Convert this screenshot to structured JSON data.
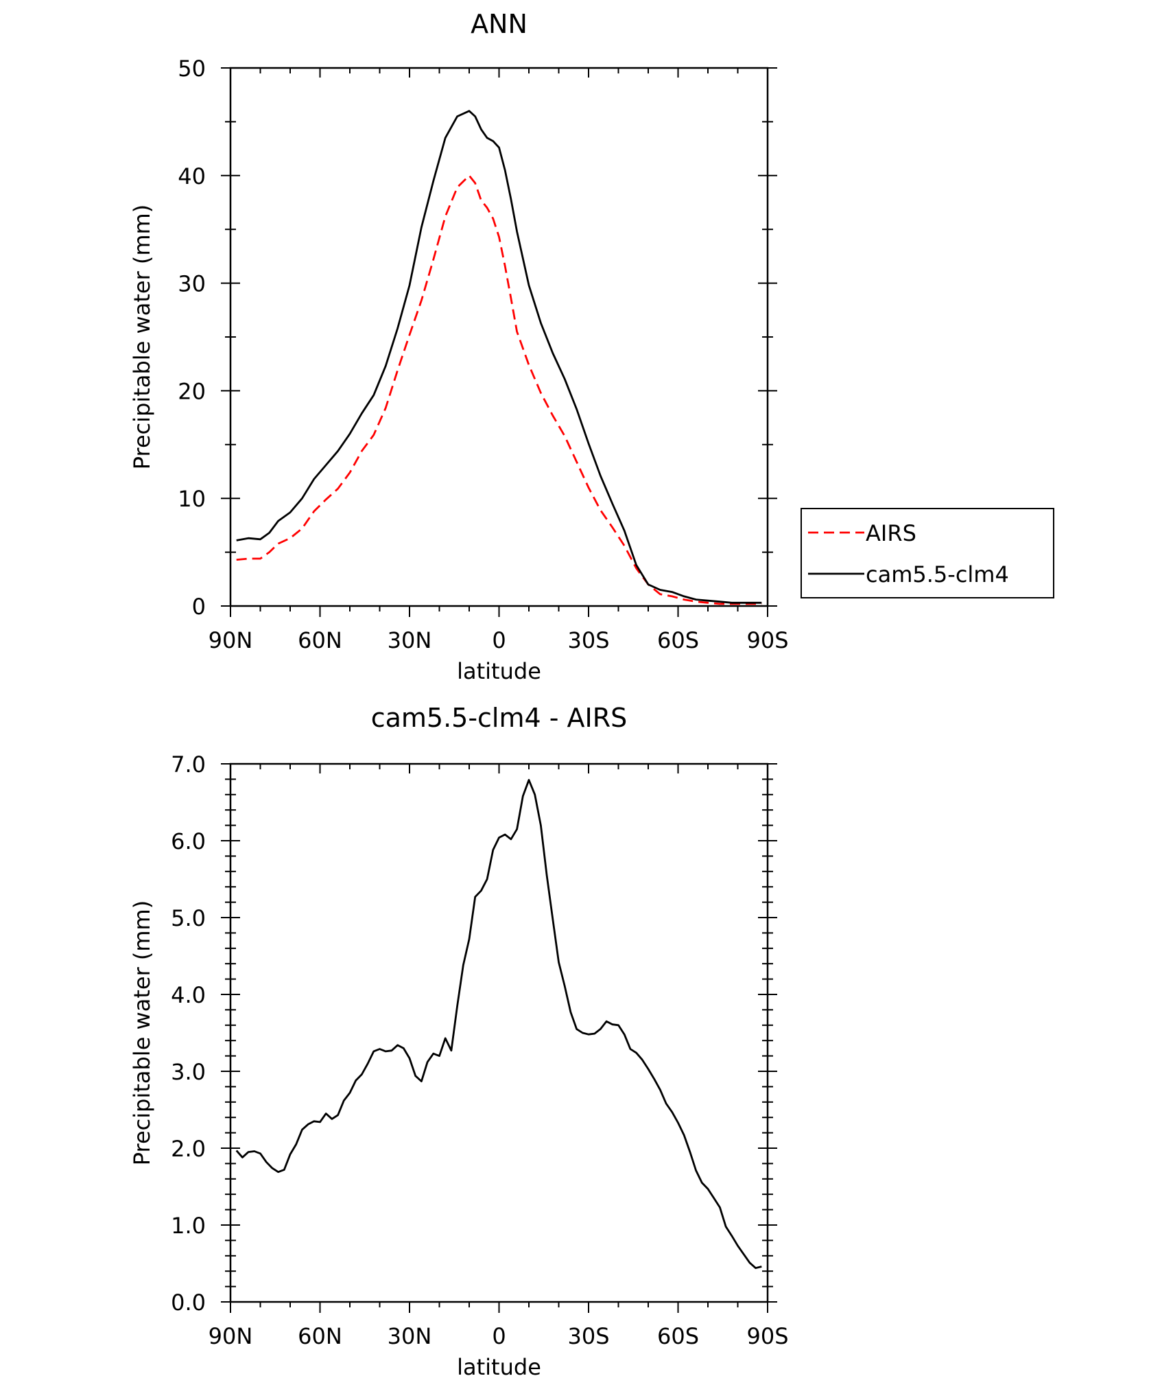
{
  "chart_data": [
    {
      "type": "line",
      "title": "ANN",
      "xlabel": "latitude",
      "ylabel": "Precipitable water (mm)",
      "xlim": [
        90,
        -90
      ],
      "ylim": [
        0,
        50
      ],
      "x_ticks": [
        90,
        60,
        30,
        0,
        -30,
        -60,
        -90
      ],
      "x_tick_labels": [
        "90N",
        "60N",
        "30N",
        "0",
        "30S",
        "60S",
        "90S"
      ],
      "y_ticks": [
        0,
        10,
        20,
        30,
        40,
        50
      ],
      "y_tick_labels": [
        "0",
        "10",
        "20",
        "30",
        "40",
        "50"
      ],
      "legend": "right",
      "series": [
        {
          "name": "AIRS",
          "color": "#ff0000",
          "dash": "dashed",
          "x": [
            88,
            84,
            80,
            77,
            74,
            70,
            66,
            62,
            58,
            54,
            50,
            46,
            42,
            38,
            34,
            30,
            26,
            22,
            18,
            14,
            10,
            8,
            6,
            4,
            2,
            0,
            -2,
            -4,
            -6,
            -10,
            -14,
            -18,
            -22,
            -26,
            -30,
            -34,
            -38,
            -42,
            -46,
            -50,
            -54,
            -58,
            -62,
            -66,
            -70,
            -74,
            -78,
            -82,
            -85,
            -88
          ],
          "y": [
            4.3,
            4.4,
            4.4,
            5.0,
            5.8,
            6.3,
            7.2,
            8.8,
            9.9,
            10.9,
            12.4,
            14.4,
            15.9,
            18.4,
            21.9,
            25.2,
            28.4,
            32.2,
            36.2,
            38.9,
            40.0,
            39.3,
            37.7,
            37.0,
            36.0,
            34.3,
            31.6,
            28.6,
            25.5,
            22.4,
            19.8,
            17.7,
            15.8,
            13.4,
            11.0,
            8.9,
            7.3,
            5.6,
            3.5,
            2.0,
            1.1,
            0.9,
            0.6,
            0.4,
            0.3,
            0.2,
            0.2,
            0.2,
            0.2,
            0.2
          ]
        },
        {
          "name": "cam5.5-clm4",
          "color": "#000000",
          "dash": "solid",
          "x": [
            88,
            84,
            80,
            77,
            74,
            70,
            66,
            62,
            58,
            54,
            50,
            46,
            42,
            38,
            34,
            30,
            26,
            22,
            18,
            14,
            10,
            8,
            6,
            4,
            2,
            0,
            -2,
            -4,
            -6,
            -10,
            -14,
            -18,
            -22,
            -26,
            -30,
            -34,
            -38,
            -42,
            -46,
            -50,
            -54,
            -58,
            -62,
            -66,
            -70,
            -74,
            -78,
            -82,
            -85,
            -88
          ],
          "y": [
            6.1,
            6.3,
            6.2,
            6.8,
            7.9,
            8.7,
            10.0,
            11.8,
            13.1,
            14.4,
            16.0,
            17.9,
            19.6,
            22.3,
            25.8,
            29.8,
            35.2,
            39.5,
            43.5,
            45.5,
            46.0,
            45.5,
            44.3,
            43.5,
            43.2,
            42.6,
            40.5,
            37.8,
            34.8,
            29.8,
            26.3,
            23.5,
            21.1,
            18.3,
            15.1,
            12.1,
            9.5,
            7.0,
            3.8,
            2.0,
            1.5,
            1.3,
            0.9,
            0.6,
            0.5,
            0.4,
            0.3,
            0.3,
            0.3,
            0.3
          ]
        }
      ]
    },
    {
      "type": "line",
      "title": "cam5.5-clm4 - AIRS",
      "xlabel": "latitude",
      "ylabel": "Precipitable water (mm)",
      "xlim": [
        90,
        -90
      ],
      "ylim": [
        0,
        7
      ],
      "x_ticks": [
        90,
        60,
        30,
        0,
        -30,
        -60,
        -90
      ],
      "x_tick_labels": [
        "90N",
        "60N",
        "30N",
        "0",
        "30S",
        "60S",
        "90S"
      ],
      "y_ticks": [
        0,
        1,
        2,
        3,
        4,
        5,
        6,
        7
      ],
      "y_tick_labels": [
        "0.0",
        "1.0",
        "2.0",
        "3.0",
        "4.0",
        "5.0",
        "6.0",
        "7.0"
      ],
      "series": [
        {
          "name": "cam5.5-clm4 - AIRS",
          "color": "#000000",
          "dash": "solid",
          "x": [
            88,
            86,
            84,
            82,
            80,
            78,
            76,
            74,
            72,
            70,
            68,
            66,
            64,
            62,
            60,
            58,
            56,
            54,
            52,
            50,
            48,
            46,
            44,
            42,
            40,
            38,
            36,
            34,
            32,
            30,
            28,
            26,
            24,
            22,
            20,
            18,
            16,
            14,
            12,
            10,
            8,
            6,
            4,
            2,
            0,
            -2,
            -4,
            -6,
            -8,
            -10,
            -12,
            -14,
            -16,
            -18,
            -20,
            -22,
            -24,
            -26,
            -28,
            -30,
            -32,
            -34,
            -36,
            -38,
            -40,
            -42,
            -44,
            -46,
            -48,
            -50,
            -52,
            -54,
            -56,
            -58,
            -60,
            -62,
            -64,
            -66,
            -68,
            -70,
            -72,
            -74,
            -76,
            -78,
            -80,
            -82,
            -84,
            -86,
            -88
          ],
          "y": [
            1.97,
            1.88,
            1.95,
            1.96,
            1.93,
            1.82,
            1.74,
            1.69,
            1.72,
            1.92,
            2.05,
            2.24,
            2.31,
            2.35,
            2.34,
            2.45,
            2.38,
            2.43,
            2.62,
            2.72,
            2.88,
            2.96,
            3.1,
            3.26,
            3.29,
            3.26,
            3.27,
            3.34,
            3.3,
            3.17,
            2.94,
            2.87,
            3.12,
            3.23,
            3.2,
            3.43,
            3.27,
            3.85,
            4.38,
            4.72,
            5.27,
            5.35,
            5.5,
            5.88,
            6.04,
            6.08,
            6.02,
            6.15,
            6.58,
            6.79,
            6.6,
            6.2,
            5.55,
            4.98,
            4.42,
            4.11,
            3.77,
            3.55,
            3.5,
            3.48,
            3.49,
            3.55,
            3.65,
            3.61,
            3.6,
            3.48,
            3.29,
            3.24,
            3.15,
            3.03,
            2.9,
            2.76,
            2.58,
            2.47,
            2.33,
            2.17,
            1.95,
            1.71,
            1.55,
            1.47,
            1.35,
            1.23,
            0.98,
            0.86,
            0.73,
            0.62,
            0.51,
            0.44,
            0.46
          ]
        }
      ]
    }
  ]
}
